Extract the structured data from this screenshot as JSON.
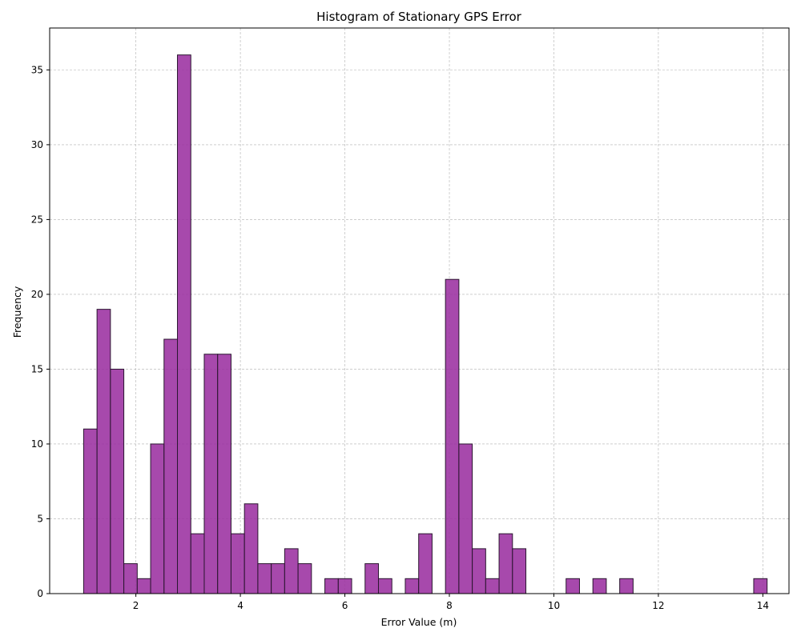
{
  "chart_data": {
    "type": "histogram",
    "title": "Histogram of Stationary GPS Error",
    "xlabel": "Error Value (m)",
    "ylabel": "Frequency",
    "xlim": [
      0.35,
      14.5
    ],
    "ylim": [
      0,
      37.8
    ],
    "xticks": [
      2,
      4,
      6,
      8,
      10,
      12,
      14
    ],
    "yticks": [
      0,
      5,
      10,
      15,
      20,
      25,
      30,
      35
    ],
    "grid": true,
    "bar_color": "#9b30a0",
    "edge_color": "#2b1630",
    "grid_color": "#b0b0b0",
    "bin_start": 1.0,
    "bin_width": 0.2565,
    "counts": [
      11,
      19,
      15,
      2,
      1,
      10,
      17,
      36,
      4,
      16,
      16,
      4,
      6,
      2,
      2,
      3,
      2,
      0,
      1,
      1,
      0,
      2,
      1,
      0,
      1,
      4,
      0,
      21,
      10,
      3,
      1,
      4,
      3,
      0,
      0,
      0,
      1,
      0,
      1,
      0,
      1,
      0,
      0,
      0,
      0,
      0,
      0,
      0,
      0,
      0,
      1
    ]
  }
}
